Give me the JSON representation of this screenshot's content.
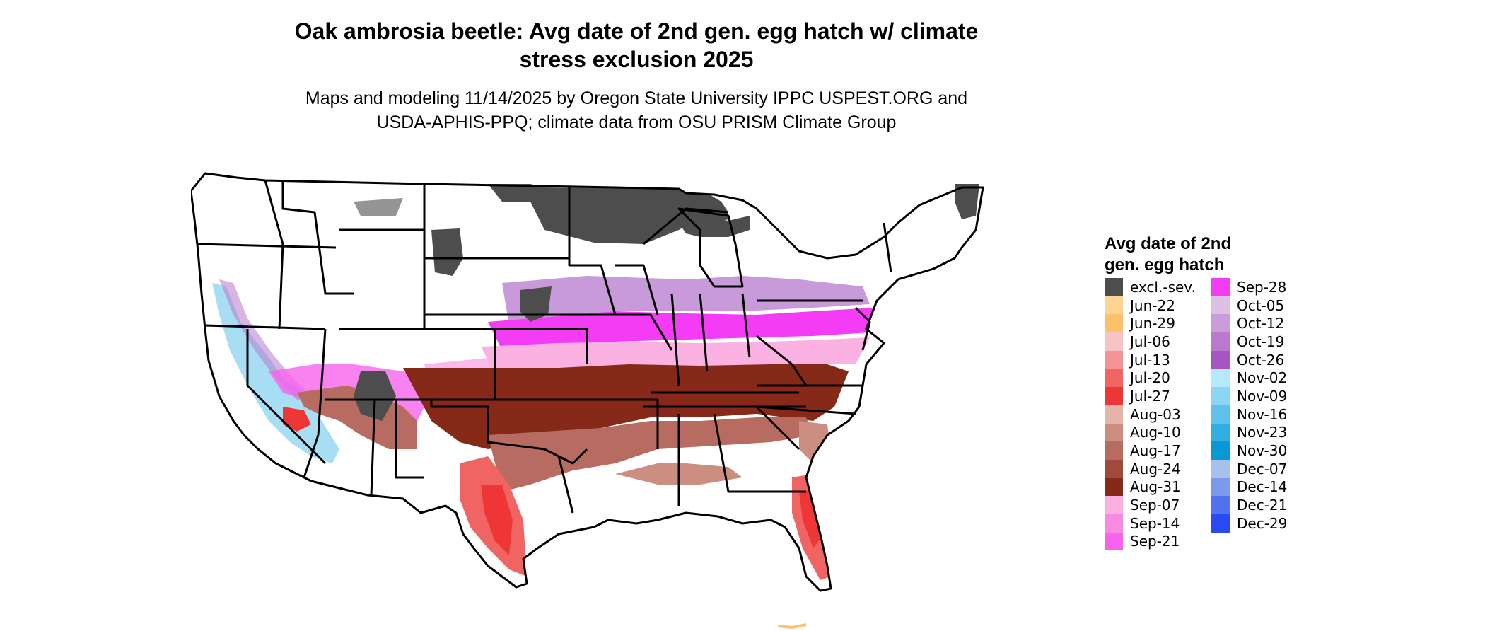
{
  "title_lines": [
    "Oak ambrosia beetle: Avg date of 2nd gen. egg hatch w/ climate",
    "stress exclusion 2025"
  ],
  "subtitle_lines": [
    "Maps and modeling 11/14/2025 by Oregon State University IPPC USPEST.ORG and",
    "USDA-APHIS-PPQ; climate data from OSU PRISM Climate Group"
  ],
  "legend": {
    "title_lines": [
      "Avg date of 2nd",
      "gen. egg hatch"
    ],
    "items": [
      {
        "label": "excl.-sev.",
        "color": "#4d4d4d"
      },
      {
        "label": "Jun-22",
        "color": "#fdd592"
      },
      {
        "label": "Jun-29",
        "color": "#fcc16c"
      },
      {
        "label": "Jul-06",
        "color": "#f6c4c4"
      },
      {
        "label": "Jul-13",
        "color": "#f39393"
      },
      {
        "label": "Jul-20",
        "color": "#f06464"
      },
      {
        "label": "Jul-27",
        "color": "#ee3636"
      },
      {
        "label": "Aug-03",
        "color": "#e3b4a8"
      },
      {
        "label": "Aug-10",
        "color": "#cd8e82"
      },
      {
        "label": "Aug-17",
        "color": "#b86b60"
      },
      {
        "label": "Aug-24",
        "color": "#a04a3d"
      },
      {
        "label": "Aug-31",
        "color": "#862919"
      },
      {
        "label": "Sep-07",
        "color": "#fbb1e2"
      },
      {
        "label": "Sep-14",
        "color": "#f98ae3"
      },
      {
        "label": "Sep-21",
        "color": "#f763ed"
      },
      {
        "label": "Sep-28",
        "color": "#f43cf6"
      },
      {
        "label": "Oct-05",
        "color": "#dcc1e4"
      },
      {
        "label": "Oct-12",
        "color": "#cb9dd8"
      },
      {
        "label": "Oct-19",
        "color": "#b979cc"
      },
      {
        "label": "Oct-26",
        "color": "#a556c0"
      },
      {
        "label": "Nov-02",
        "color": "#b5eafd"
      },
      {
        "label": "Nov-09",
        "color": "#8ad6f4"
      },
      {
        "label": "Nov-16",
        "color": "#5ec2ea"
      },
      {
        "label": "Nov-23",
        "color": "#32ade0"
      },
      {
        "label": "Nov-30",
        "color": "#0a97d6"
      },
      {
        "label": "Dec-07",
        "color": "#a7c1ea"
      },
      {
        "label": "Dec-14",
        "color": "#7d99ec"
      },
      {
        "label": "Dec-21",
        "color": "#5272f0"
      },
      {
        "label": "Dec-29",
        "color": "#2a4af3"
      }
    ]
  }
}
